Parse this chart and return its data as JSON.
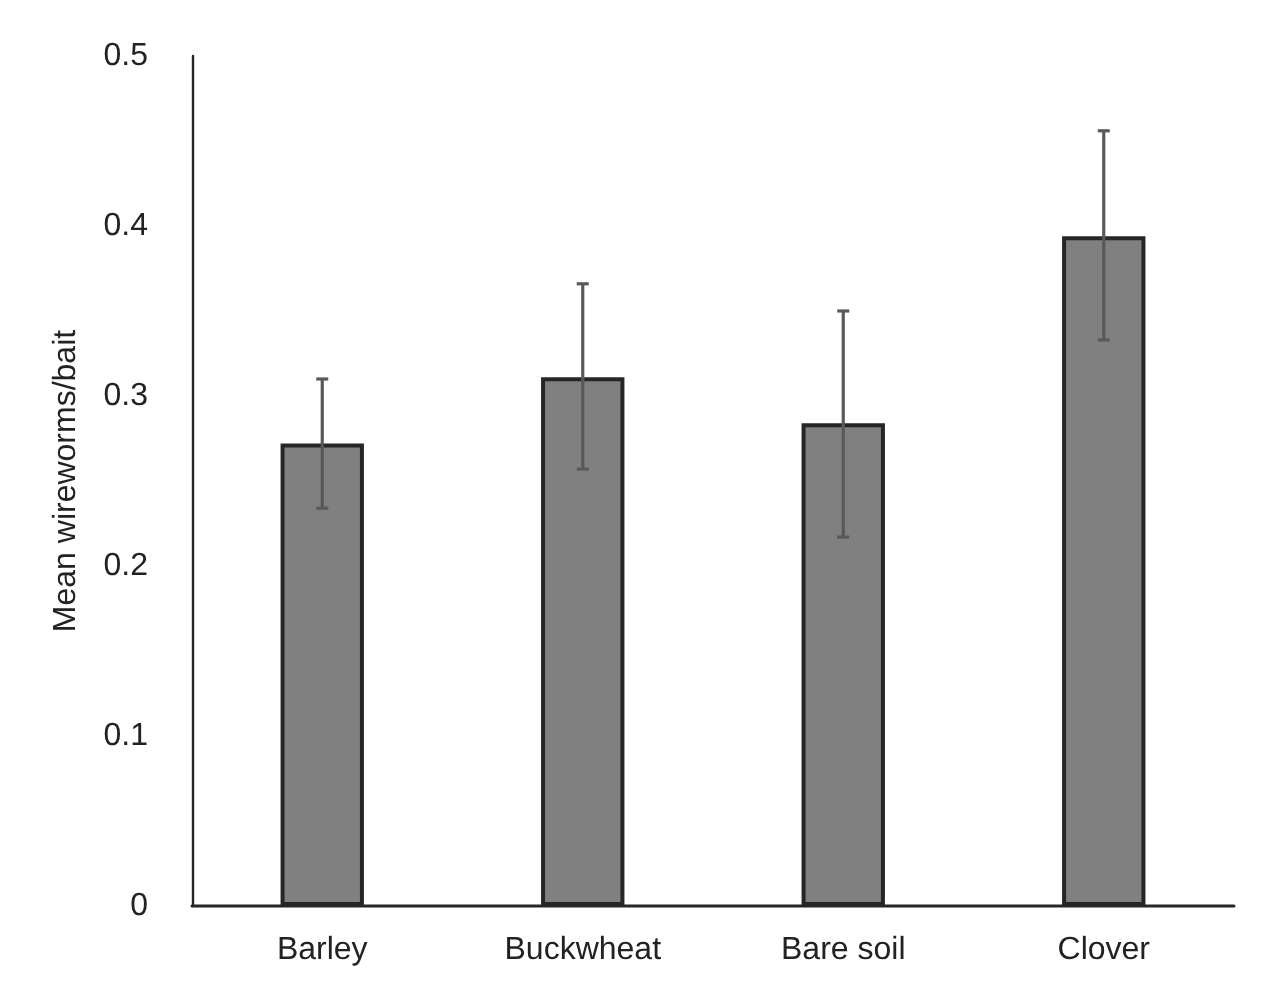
{
  "chart_data": {
    "type": "bar",
    "ylabel": "Mean wireworms/bait",
    "categories": [
      "Barley",
      "Buckwheat",
      "Bare soil",
      "Clover"
    ],
    "values": [
      0.272,
      0.311,
      0.284,
      0.394
    ],
    "errors": [
      [
        0.234,
        0.31
      ],
      [
        0.257,
        0.366
      ],
      [
        0.217,
        0.35
      ],
      [
        0.333,
        0.456
      ]
    ],
    "color": "#808080",
    "ylim": [
      0,
      0.5
    ],
    "yticks": [
      0,
      0.1,
      0.2,
      0.3,
      0.4,
      0.5
    ],
    "grid": false
  }
}
